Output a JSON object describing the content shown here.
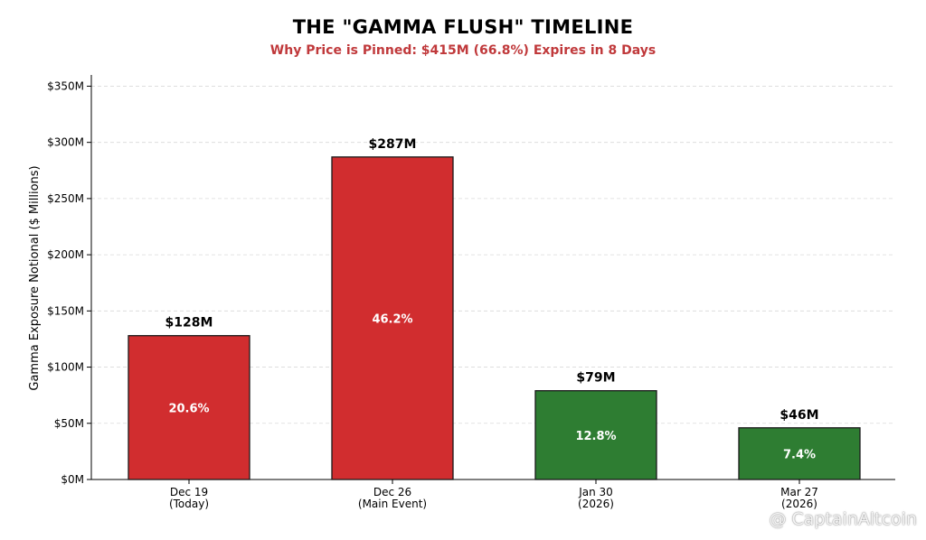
{
  "chart_data": {
    "type": "bar",
    "title": "THE \"GAMMA FLUSH\" TIMELINE",
    "subtitle": "Why Price is Pinned: $415M (66.8%) Expires in 8 Days",
    "ylabel": "Gamma Exposure Notional ($ Millions)",
    "xlabel": "",
    "ylim": [
      0,
      360
    ],
    "yticks": [
      0,
      50,
      100,
      150,
      200,
      250,
      300,
      350
    ],
    "ytick_labels": [
      "$0M",
      "$50M",
      "$100M",
      "$150M",
      "$200M",
      "$250M",
      "$300M",
      "$350M"
    ],
    "grid": "horizontal dashed",
    "categories": [
      [
        "Dec 19",
        "(Today)"
      ],
      [
        "Dec 26",
        "(Main Event)"
      ],
      [
        "Jan 30",
        "(2026)"
      ],
      [
        "Mar 27",
        "(2026)"
      ]
    ],
    "values": [
      128,
      287,
      79,
      46
    ],
    "value_labels": [
      "$128M",
      "$287M",
      "$79M",
      "$46M"
    ],
    "percent_labels": [
      "20.6%",
      "46.2%",
      "12.8%",
      "7.4%"
    ],
    "colors": [
      "#d12d2f",
      "#d12d2f",
      "#2e7d32",
      "#2e7d32"
    ]
  },
  "watermark": {
    "text": "@ CaptainAltcoin",
    "icon": "binance-logo-icon"
  }
}
